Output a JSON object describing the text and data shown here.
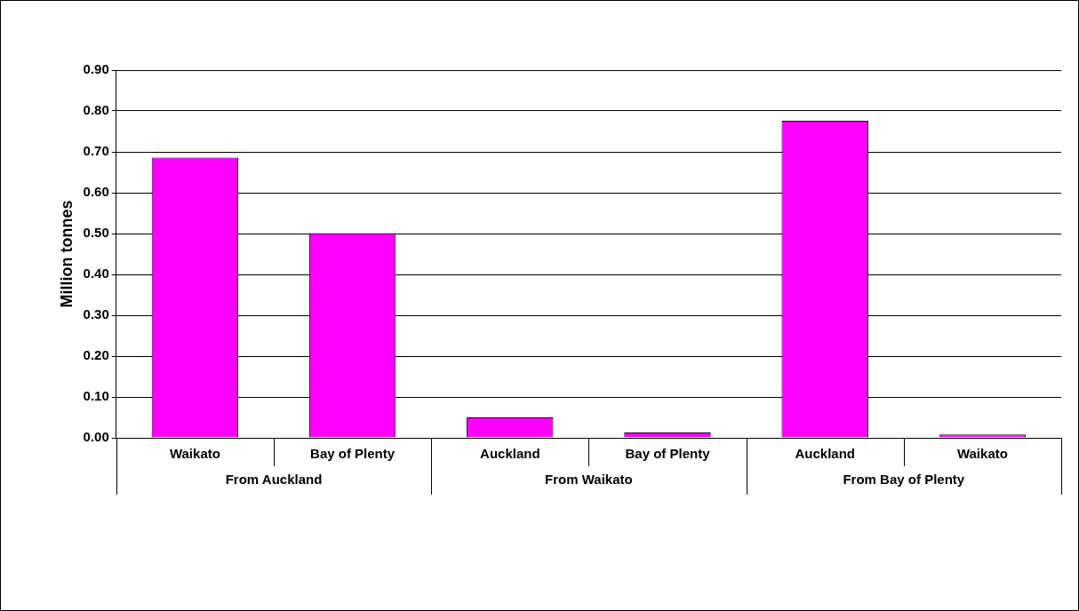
{
  "chart_data": {
    "type": "bar",
    "ylabel": "Million tonnes",
    "categories": [
      "Waikato",
      "Bay of Plenty",
      "Auckland",
      "Bay of Plenty",
      "Auckland",
      "Waikato"
    ],
    "values": [
      0.686,
      0.501,
      0.05,
      0.013,
      0.776,
      0.008
    ],
    "color": "#ff00ff",
    "ylim": [
      0,
      0.9
    ],
    "yticks": [
      {
        "value": 0,
        "label": "0.00"
      },
      {
        "value": 0.1,
        "label": "0.10"
      },
      {
        "value": 0.2,
        "label": "0.20"
      },
      {
        "value": 0.3,
        "label": "0.30"
      },
      {
        "value": 0.4,
        "label": "0.40"
      },
      {
        "value": 0.5,
        "label": "0.50"
      },
      {
        "value": 0.6,
        "label": "0.60"
      },
      {
        "value": 0.7,
        "label": "0.70"
      },
      {
        "value": 0.8,
        "label": "0.80"
      },
      {
        "value": 0.9,
        "label": "0.90"
      }
    ],
    "grid": "y",
    "legend": false,
    "annotations": [
      "From Auckland",
      "From Waikato",
      "From Bay of Plenty"
    ]
  }
}
